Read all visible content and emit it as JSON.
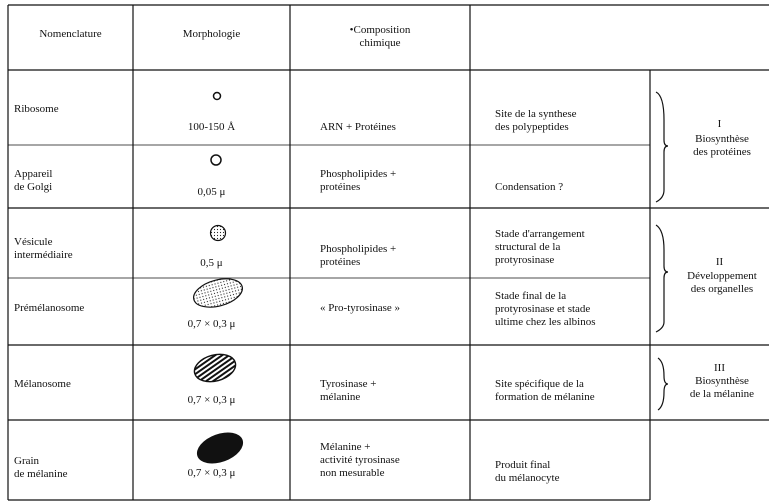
{
  "table": {
    "header": [
      "Nomenclature",
      "Morphologie",
      "•Composition\nchimique"
    ],
    "rows": [
      {
        "name": "Ribosome",
        "size": "100-150 Å",
        "composition": "ARN + Protéines",
        "function": "Site de la synthese\ndes polypeptides"
      },
      {
        "name": "Appareil\nde Golgi",
        "size": "0,05 μ",
        "composition": "Phospholipides +\nprotéines",
        "function": "Condensation ?"
      },
      {
        "name": "Vésicule\nintermédiaire",
        "size": "0,5 μ",
        "composition": "Phospholipides +\nprotéines",
        "function": "Stade d'arrangement\nstructural de la\nprotyrosinase"
      },
      {
        "name": "Prémélanosome",
        "size": "0,7 × 0,3 μ",
        "composition": "« Pro-tyrosinase »",
        "function": "Stade final de la\nprotyrosinase et stade\nultime chez les albinos"
      },
      {
        "name": "Mélanosome",
        "size": "0,7 × 0,3 μ",
        "composition": "Tyrosinase +\nmélanine",
        "function": "Site spécifique de la\nformation de mélanine"
      },
      {
        "name": "Grain\nde mélanine",
        "size": "0,7 × 0,3 μ",
        "composition": "Mélanine +\nactivité tyrosinase\nnon mesurable",
        "function": "Produit final\ndu mélanocyte"
      }
    ],
    "groups": [
      {
        "number": "I",
        "label": "Biosynthèse\ndes protéines"
      },
      {
        "number": "II",
        "label": "Développement\ndes organelles"
      },
      {
        "number": "III",
        "label": "Biosynthèse\nde la mélanine"
      }
    ]
  }
}
